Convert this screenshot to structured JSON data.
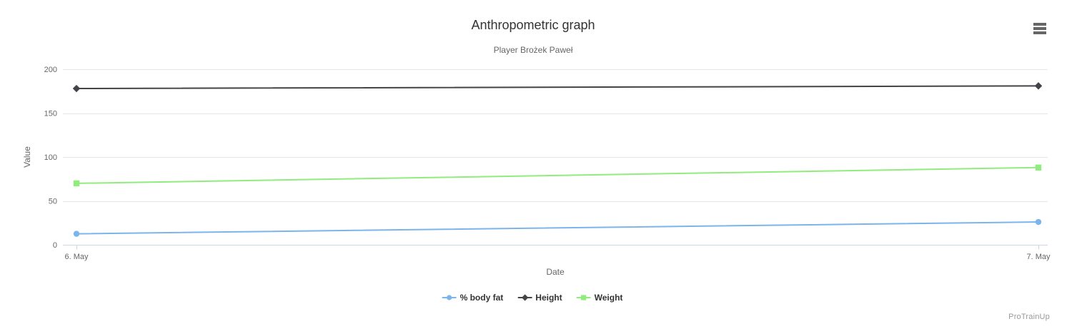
{
  "chart_data": {
    "type": "line",
    "title": "Anthropometric graph",
    "subtitle": "Player Brożek Paweł",
    "xlabel": "Date",
    "ylabel": "Value",
    "x_categories": [
      "6. May",
      "7. May"
    ],
    "ylim": [
      0,
      200
    ],
    "yticks": [
      0,
      50,
      100,
      150,
      200
    ],
    "grid": true,
    "legend_position": "bottom-center",
    "series": [
      {
        "name": "% body fat",
        "values": [
          12.5,
          26
        ],
        "color": "#7cb5ec",
        "marker": "circle"
      },
      {
        "name": "Height",
        "values": [
          178,
          181
        ],
        "color": "#434348",
        "marker": "diamond"
      },
      {
        "name": "Weight",
        "values": [
          70,
          88
        ],
        "color": "#90ed7d",
        "marker": "square"
      }
    ]
  },
  "header": {
    "menu_icon": "hamburger-menu-icon"
  },
  "footer": {
    "watermark": "ProTrainUp"
  },
  "colors": {
    "background": "#ffffff",
    "title": "#333333",
    "subtitle": "#666666",
    "grid": "#e6e6e6",
    "axis_line": "#ccd6eb",
    "tick_label": "#666666",
    "axis_title": "#666666",
    "legend_text": "#333333",
    "menu_icon": "#666666",
    "watermark": "#999999"
  }
}
